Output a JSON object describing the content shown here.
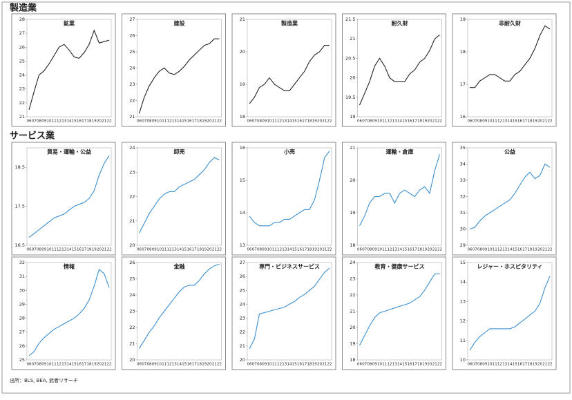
{
  "sections": [
    {
      "title": "製造業"
    },
    {
      "title": "サービス業"
    }
  ],
  "source": "出所：BLS, BEA, 武者リサーチ",
  "chart_data": [
    {
      "type": "line",
      "title": "鉱業",
      "color": "#222222",
      "categories": [
        "06",
        "07",
        "08",
        "09",
        "10",
        "11",
        "12",
        "13",
        "14",
        "15",
        "16",
        "17",
        "18",
        "19",
        "20",
        "21",
        "22"
      ],
      "values": [
        21.5,
        22.8,
        24,
        24.3,
        24.8,
        25.4,
        26,
        26.2,
        25.8,
        25.3,
        25.2,
        25.6,
        26.2,
        27.2,
        26.3,
        26.4,
        26.5
      ],
      "ylim": [
        21,
        28
      ],
      "yticks": [
        21,
        22,
        23,
        24,
        25,
        26,
        27,
        28
      ]
    },
    {
      "type": "line",
      "title": "建設",
      "color": "#222222",
      "categories": [
        "06",
        "07",
        "08",
        "09",
        "10",
        "11",
        "12",
        "13",
        "14",
        "15",
        "16",
        "17",
        "18",
        "19",
        "20",
        "21",
        "22"
      ],
      "values": [
        21.2,
        22.2,
        22.9,
        23.4,
        23.8,
        24,
        23.7,
        23.6,
        23.8,
        24.1,
        24.5,
        24.8,
        25.1,
        25.4,
        25.5,
        25.8,
        25.8
      ],
      "ylim": [
        21,
        27
      ],
      "yticks": [
        21,
        22,
        23,
        24,
        25,
        26,
        27
      ]
    },
    {
      "type": "line",
      "title": "製造業",
      "color": "#222222",
      "categories": [
        "06",
        "07",
        "08",
        "09",
        "10",
        "11",
        "12",
        "13",
        "14",
        "15",
        "16",
        "17",
        "18",
        "19",
        "20",
        "21",
        "22"
      ],
      "values": [
        18.4,
        18.6,
        18.9,
        19,
        19.2,
        19,
        18.9,
        18.8,
        18.8,
        19,
        19.2,
        19.4,
        19.7,
        19.9,
        20,
        20.2,
        20.2
      ],
      "ylim": [
        18,
        21
      ],
      "yticks": [
        18,
        19,
        20,
        21
      ]
    },
    {
      "type": "line",
      "title": "耐久財",
      "color": "#222222",
      "categories": [
        "06",
        "07",
        "08",
        "09",
        "10",
        "11",
        "12",
        "13",
        "14",
        "15",
        "16",
        "17",
        "18",
        "19",
        "20",
        "21",
        "22"
      ],
      "values": [
        19.3,
        19.6,
        19.9,
        20.3,
        20.5,
        20.3,
        20,
        19.9,
        19.9,
        19.9,
        20.1,
        20.2,
        20.4,
        20.5,
        20.7,
        21,
        21.1
      ],
      "ylim": [
        19,
        21.5
      ],
      "yticks": [
        19,
        19.5,
        20,
        20.5,
        21,
        21.5
      ]
    },
    {
      "type": "line",
      "title": "非耐久財",
      "color": "#222222",
      "categories": [
        "06",
        "07",
        "08",
        "09",
        "10",
        "11",
        "12",
        "13",
        "14",
        "15",
        "16",
        "17",
        "18",
        "19",
        "20",
        "21",
        "22"
      ],
      "values": [
        16.9,
        16.9,
        17.1,
        17.2,
        17.3,
        17.3,
        17.2,
        17.1,
        17.1,
        17.3,
        17.4,
        17.6,
        17.8,
        18.1,
        18.5,
        18.8,
        18.7
      ],
      "ylim": [
        16,
        19
      ],
      "yticks": [
        16,
        17,
        18,
        19
      ]
    },
    {
      "type": "line",
      "title": "貿易・運輸・公益",
      "color": "#3a8fd0",
      "categories": [
        "06",
        "07",
        "08",
        "09",
        "10",
        "11",
        "12",
        "13",
        "14",
        "15",
        "16",
        "17",
        "18",
        "19",
        "20",
        "21",
        "22"
      ],
      "values": [
        16.7,
        16.8,
        16.9,
        17,
        17.1,
        17.2,
        17.25,
        17.3,
        17.4,
        17.5,
        17.55,
        17.6,
        17.7,
        17.9,
        18.3,
        18.6,
        18.8
      ],
      "ylim": [
        16.5,
        19
      ],
      "yticks": [
        16.5,
        17.5,
        18.5
      ]
    },
    {
      "type": "line",
      "title": "卸売",
      "color": "#3a8fd0",
      "categories": [
        "06",
        "07",
        "08",
        "09",
        "10",
        "11",
        "12",
        "13",
        "14",
        "15",
        "16",
        "17",
        "18",
        "19",
        "20",
        "21",
        "22"
      ],
      "values": [
        20.5,
        20.9,
        21.3,
        21.6,
        21.9,
        22.1,
        22.2,
        22.2,
        22.4,
        22.5,
        22.6,
        22.7,
        22.9,
        23.1,
        23.4,
        23.6,
        23.5
      ],
      "ylim": [
        20,
        24
      ],
      "yticks": [
        20,
        21,
        22,
        23,
        24
      ]
    },
    {
      "type": "line",
      "title": "小売",
      "color": "#3a8fd0",
      "categories": [
        "06",
        "07",
        "08",
        "09",
        "10",
        "11",
        "12",
        "13",
        "14",
        "15",
        "16",
        "17",
        "18",
        "19",
        "20",
        "21",
        "22"
      ],
      "values": [
        13.9,
        13.7,
        13.6,
        13.6,
        13.6,
        13.7,
        13.7,
        13.8,
        13.8,
        13.9,
        14,
        14.1,
        14.1,
        14.4,
        15,
        15.7,
        15.9
      ],
      "ylim": [
        13,
        16
      ],
      "yticks": [
        13,
        14,
        15,
        16
      ]
    },
    {
      "type": "line",
      "title": "運輸・倉庫",
      "color": "#3a8fd0",
      "categories": [
        "06",
        "07",
        "08",
        "09",
        "10",
        "11",
        "12",
        "13",
        "14",
        "15",
        "16",
        "17",
        "18",
        "19",
        "20",
        "21",
        "22"
      ],
      "values": [
        18.6,
        18.9,
        19.3,
        19.5,
        19.5,
        19.6,
        19.6,
        19.3,
        19.6,
        19.7,
        19.6,
        19.5,
        19.7,
        19.8,
        19.6,
        20.3,
        20.8
      ],
      "ylim": [
        18,
        21
      ],
      "yticks": [
        18,
        19,
        20,
        21
      ]
    },
    {
      "type": "line",
      "title": "公益",
      "color": "#3a8fd0",
      "categories": [
        "06",
        "07",
        "08",
        "09",
        "10",
        "11",
        "12",
        "13",
        "14",
        "15",
        "16",
        "17",
        "18",
        "19",
        "20",
        "21",
        "22"
      ],
      "values": [
        30,
        30.1,
        30.5,
        30.8,
        31,
        31.2,
        31.4,
        31.6,
        31.8,
        32.2,
        32.7,
        33.2,
        33.5,
        33.1,
        33.3,
        34,
        33.8
      ],
      "ylim": [
        29,
        35
      ],
      "yticks": [
        29,
        30,
        31,
        32,
        33,
        34,
        35
      ]
    },
    {
      "type": "line",
      "title": "情報",
      "color": "#3a8fd0",
      "categories": [
        "06",
        "07",
        "08",
        "09",
        "10",
        "11",
        "12",
        "13",
        "14",
        "15",
        "16",
        "17",
        "18",
        "19",
        "20",
        "21",
        "22"
      ],
      "values": [
        25.3,
        25.6,
        26.2,
        26.6,
        26.9,
        27.2,
        27.4,
        27.6,
        27.8,
        28,
        28.3,
        28.7,
        29.3,
        30.3,
        31.5,
        31.2,
        30.2
      ],
      "ylim": [
        25,
        32
      ],
      "yticks": [
        25,
        26,
        27,
        28,
        29,
        30,
        31,
        32
      ]
    },
    {
      "type": "line",
      "title": "金融",
      "color": "#3a8fd0",
      "categories": [
        "06",
        "07",
        "08",
        "09",
        "10",
        "11",
        "12",
        "13",
        "14",
        "15",
        "16",
        "17",
        "18",
        "19",
        "20",
        "21",
        "22"
      ],
      "values": [
        20.7,
        21.2,
        21.7,
        22.1,
        22.6,
        23,
        23.4,
        23.8,
        24.2,
        24.5,
        24.6,
        24.6,
        24.9,
        25.3,
        25.6,
        25.8,
        25.9
      ],
      "ylim": [
        20,
        26
      ],
      "yticks": [
        20,
        21,
        22,
        23,
        24,
        25,
        26
      ]
    },
    {
      "type": "line",
      "title": "専門・ビジネスサービス",
      "color": "#3a8fd0",
      "categories": [
        "06",
        "07",
        "08",
        "09",
        "10",
        "11",
        "12",
        "13",
        "14",
        "15",
        "16",
        "17",
        "18",
        "19",
        "20",
        "21",
        "22"
      ],
      "values": [
        20.8,
        21.5,
        23.3,
        23.4,
        23.5,
        23.6,
        23.7,
        23.8,
        24,
        24.2,
        24.5,
        24.7,
        25,
        25.3,
        25.8,
        26.3,
        26.6
      ],
      "ylim": [
        20,
        27
      ],
      "yticks": [
        20,
        21,
        22,
        23,
        24,
        25,
        26,
        27
      ]
    },
    {
      "type": "line",
      "title": "教育・健康サービス",
      "color": "#3a8fd0",
      "categories": [
        "06",
        "07",
        "08",
        "09",
        "10",
        "11",
        "12",
        "13",
        "14",
        "15",
        "16",
        "17",
        "18",
        "19",
        "20",
        "21",
        "22"
      ],
      "values": [
        18.9,
        19.5,
        20.1,
        20.6,
        20.9,
        21,
        21.1,
        21.2,
        21.3,
        21.4,
        21.5,
        21.7,
        21.9,
        22.3,
        22.8,
        23.3,
        23.3
      ],
      "ylim": [
        18,
        24
      ],
      "yticks": [
        18,
        19,
        20,
        21,
        22,
        23,
        24
      ]
    },
    {
      "type": "line",
      "title": "レジャー・ホスピタリティ",
      "color": "#3a8fd0",
      "categories": [
        "06",
        "07",
        "08",
        "09",
        "10",
        "11",
        "12",
        "13",
        "14",
        "15",
        "16",
        "17",
        "18",
        "19",
        "20",
        "21",
        "22"
      ],
      "values": [
        10.5,
        10.9,
        11.2,
        11.4,
        11.6,
        11.6,
        11.6,
        11.6,
        11.6,
        11.7,
        11.9,
        12.1,
        12.3,
        12.5,
        12.9,
        13.7,
        14.3
      ],
      "ylim": [
        10,
        15
      ],
      "yticks": [
        10,
        11,
        12,
        13,
        14,
        15
      ]
    }
  ]
}
